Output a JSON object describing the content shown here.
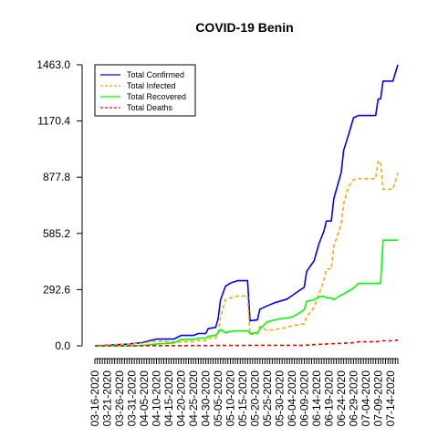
{
  "chart_data": {
    "type": "line",
    "title": "COVID-19 Benin",
    "xlabel": "",
    "ylabel": "",
    "x_tick_labels": [
      "03-16-2020",
      "03-21-2020",
      "03-26-2020",
      "03-31-2020",
      "04-05-2020",
      "04-10-2020",
      "04-15-2020",
      "04-20-2020",
      "04-25-2020",
      "04-30-2020",
      "05-05-2020",
      "05-10-2020",
      "05-15-2020",
      "05-20-2020",
      "05-25-2020",
      "05-30-2020",
      "06-04-2020",
      "06-09-2020",
      "06-14-2020",
      "06-19-2020",
      "06-24-2020",
      "06-29-2020",
      "07-04-2020",
      "07-09-2020",
      "07-14-2020"
    ],
    "y_ticks": [
      0.0,
      292.6,
      585.2,
      877.8,
      1170.4,
      1463.0
    ],
    "y_tick_labels": [
      "0.0",
      "292.6",
      "585.2",
      "877.8",
      "1170.4",
      "1463.0"
    ],
    "ylim": [
      0,
      1463
    ],
    "x_range": [
      "03-16-2020",
      "07-17-2020"
    ],
    "grid": false,
    "legend_position": "top-left",
    "series": [
      {
        "name": "Total Confirmed",
        "color": "#0000ff",
        "dash": "solid",
        "points": [
          [
            "03-16-2020",
            1
          ],
          [
            "03-20-2020",
            2
          ],
          [
            "03-25-2020",
            6
          ],
          [
            "03-30-2020",
            9
          ],
          [
            "04-01-2020",
            13
          ],
          [
            "04-04-2020",
            16
          ],
          [
            "04-07-2020",
            26
          ],
          [
            "04-10-2020",
            35
          ],
          [
            "04-17-2020",
            35
          ],
          [
            "04-20-2020",
            54
          ],
          [
            "04-25-2020",
            54
          ],
          [
            "04-27-2020",
            64
          ],
          [
            "04-30-2020",
            64
          ],
          [
            "05-01-2020",
            90
          ],
          [
            "05-04-2020",
            96
          ],
          [
            "05-05-2020",
            140
          ],
          [
            "05-06-2020",
            240
          ],
          [
            "05-08-2020",
            310
          ],
          [
            "05-10-2020",
            327
          ],
          [
            "05-13-2020",
            339
          ],
          [
            "05-17-2020",
            339
          ],
          [
            "05-18-2020",
            130
          ],
          [
            "05-21-2020",
            135
          ],
          [
            "05-22-2020",
            191
          ],
          [
            "05-25-2020",
            208
          ],
          [
            "05-28-2020",
            224
          ],
          [
            "05-30-2020",
            232
          ],
          [
            "06-02-2020",
            243
          ],
          [
            "06-04-2020",
            261
          ],
          [
            "06-07-2020",
            288
          ],
          [
            "06-09-2020",
            305
          ],
          [
            "06-10-2020",
            388
          ],
          [
            "06-13-2020",
            442
          ],
          [
            "06-15-2020",
            532
          ],
          [
            "06-17-2020",
            597
          ],
          [
            "06-18-2020",
            650
          ],
          [
            "06-20-2020",
            650
          ],
          [
            "06-21-2020",
            765
          ],
          [
            "06-24-2020",
            902
          ],
          [
            "06-25-2020",
            1017
          ],
          [
            "06-27-2020",
            1099
          ],
          [
            "06-29-2020",
            1187
          ],
          [
            "07-01-2020",
            1199
          ],
          [
            "07-08-2020",
            1199
          ],
          [
            "07-09-2020",
            1285
          ],
          [
            "07-10-2020",
            1285
          ],
          [
            "07-11-2020",
            1378
          ],
          [
            "07-15-2020",
            1378
          ],
          [
            "07-17-2020",
            1463
          ]
        ]
      },
      {
        "name": "Total Infected",
        "color": "#ffa500",
        "dash": "dashed",
        "points": [
          [
            "03-16-2020",
            1
          ],
          [
            "03-20-2020",
            2
          ],
          [
            "03-25-2020",
            6
          ],
          [
            "03-30-2020",
            9
          ],
          [
            "04-01-2020",
            12
          ],
          [
            "04-04-2020",
            13
          ],
          [
            "04-07-2020",
            20
          ],
          [
            "04-10-2020",
            25
          ],
          [
            "04-17-2020",
            20
          ],
          [
            "04-20-2020",
            20
          ],
          [
            "04-25-2020",
            22
          ],
          [
            "04-27-2020",
            28
          ],
          [
            "04-30-2020",
            26
          ],
          [
            "05-01-2020",
            40
          ],
          [
            "05-04-2020",
            40
          ],
          [
            "05-05-2020",
            70
          ],
          [
            "05-06-2020",
            150
          ],
          [
            "05-08-2020",
            240
          ],
          [
            "05-10-2020",
            250
          ],
          [
            "05-13-2020",
            260
          ],
          [
            "05-17-2020",
            260
          ],
          [
            "05-18-2020",
            60
          ],
          [
            "05-21-2020",
            62
          ],
          [
            "05-22-2020",
            100
          ],
          [
            "05-25-2020",
            80
          ],
          [
            "05-28-2020",
            85
          ],
          [
            "05-30-2020",
            90
          ],
          [
            "06-02-2020",
            95
          ],
          [
            "06-04-2020",
            105
          ],
          [
            "06-07-2020",
            110
          ],
          [
            "06-09-2020",
            115
          ],
          [
            "06-10-2020",
            150
          ],
          [
            "06-13-2020",
            200
          ],
          [
            "06-15-2020",
            270
          ],
          [
            "06-17-2020",
            340
          ],
          [
            "06-18-2020",
            400
          ],
          [
            "06-20-2020",
            400
          ],
          [
            "06-21-2020",
            520
          ],
          [
            "06-24-2020",
            630
          ],
          [
            "06-25-2020",
            740
          ],
          [
            "06-27-2020",
            830
          ],
          [
            "06-29-2020",
            865
          ],
          [
            "07-01-2020",
            870
          ],
          [
            "07-08-2020",
            870
          ],
          [
            "07-09-2020",
            960
          ],
          [
            "07-10-2020",
            960
          ],
          [
            "07-11-2020",
            815
          ],
          [
            "07-15-2020",
            815
          ],
          [
            "07-17-2020",
            900
          ]
        ]
      },
      {
        "name": "Total Recovered",
        "color": "#00ff00",
        "dash": "solid",
        "points": [
          [
            "03-16-2020",
            0
          ],
          [
            "04-01-2020",
            0
          ],
          [
            "04-07-2020",
            5
          ],
          [
            "04-10-2020",
            10
          ],
          [
            "04-17-2020",
            15
          ],
          [
            "04-20-2020",
            33
          ],
          [
            "04-25-2020",
            33
          ],
          [
            "04-27-2020",
            40
          ],
          [
            "04-30-2020",
            40
          ],
          [
            "05-01-2020",
            50
          ],
          [
            "05-04-2020",
            54
          ],
          [
            "05-05-2020",
            68
          ],
          [
            "05-06-2020",
            85
          ],
          [
            "05-08-2020",
            68
          ],
          [
            "05-10-2020",
            75
          ],
          [
            "05-13-2020",
            78
          ],
          [
            "05-17-2020",
            78
          ],
          [
            "05-18-2020",
            65
          ],
          [
            "05-21-2020",
            68
          ],
          [
            "05-22-2020",
            88
          ],
          [
            "05-25-2020",
            125
          ],
          [
            "05-28-2020",
            135
          ],
          [
            "05-30-2020",
            140
          ],
          [
            "06-02-2020",
            145
          ],
          [
            "06-04-2020",
            150
          ],
          [
            "06-07-2020",
            170
          ],
          [
            "06-09-2020",
            188
          ],
          [
            "06-10-2020",
            232
          ],
          [
            "06-13-2020",
            240
          ],
          [
            "06-15-2020",
            255
          ],
          [
            "06-17-2020",
            258
          ],
          [
            "06-18-2020",
            250
          ],
          [
            "06-20-2020",
            250
          ],
          [
            "06-21-2020",
            240
          ],
          [
            "06-24-2020",
            265
          ],
          [
            "06-25-2020",
            270
          ],
          [
            "06-27-2020",
            285
          ],
          [
            "06-29-2020",
            300
          ],
          [
            "07-01-2020",
            325
          ],
          [
            "07-08-2020",
            325
          ],
          [
            "07-09-2020",
            325
          ],
          [
            "07-10-2020",
            325
          ],
          [
            "07-11-2020",
            550
          ],
          [
            "07-15-2020",
            550
          ],
          [
            "07-17-2020",
            550
          ]
        ]
      },
      {
        "name": "Total Deaths",
        "color": "#ff0000",
        "dash": "dashed",
        "points": [
          [
            "03-16-2020",
            0
          ],
          [
            "04-05-2020",
            0
          ],
          [
            "04-07-2020",
            1
          ],
          [
            "04-20-2020",
            1
          ],
          [
            "05-05-2020",
            2
          ],
          [
            "05-10-2020",
            2
          ],
          [
            "05-22-2020",
            3
          ],
          [
            "06-09-2020",
            3
          ],
          [
            "06-13-2020",
            6
          ],
          [
            "06-17-2020",
            9
          ],
          [
            "06-20-2020",
            11
          ],
          [
            "06-24-2020",
            13
          ],
          [
            "06-29-2020",
            16
          ],
          [
            "07-01-2020",
            21
          ],
          [
            "07-08-2020",
            21
          ],
          [
            "07-11-2020",
            26
          ],
          [
            "07-15-2020",
            26
          ],
          [
            "07-17-2020",
            30
          ]
        ]
      }
    ]
  }
}
